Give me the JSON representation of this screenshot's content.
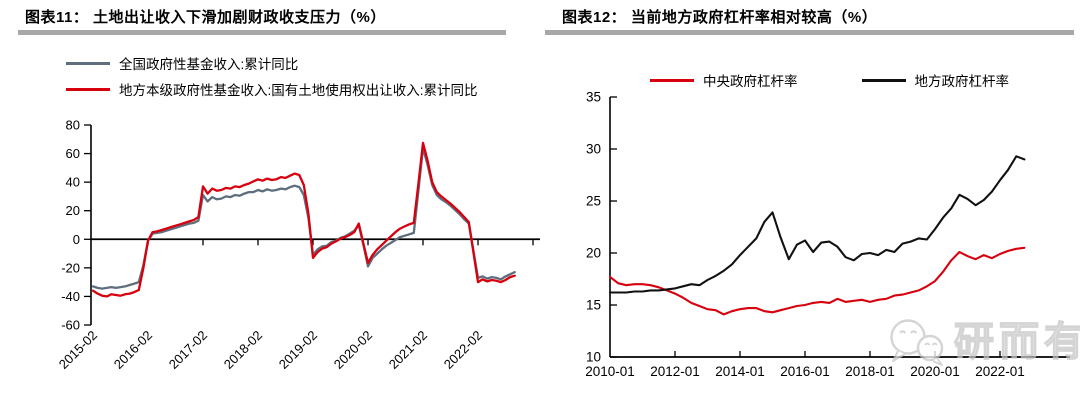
{
  "figure11": {
    "title": "图表11： 土地出让收入下滑加剧财政收支压力（%）",
    "chart_data": {
      "type": "line",
      "title": "土地出让收入下滑加剧财政收支压力（%）",
      "frequency": "monthly",
      "x_start": "2015-02",
      "x_tick_labels": [
        "2015-02",
        "2016-02",
        "2017-02",
        "2018-02",
        "2019-02",
        "2020-02",
        "2021-02",
        "2022-02"
      ],
      "y_ticks": [
        80,
        60,
        40,
        20,
        0,
        -20,
        -40,
        -60
      ],
      "ylim": [
        -60,
        80
      ],
      "grid": false,
      "legend_position": "top-left",
      "series": [
        {
          "name": "全国政府性基金收入:累计同比",
          "color": "#5e6e7e",
          "values": [
            -33,
            -34,
            -34.5,
            -34,
            -33.5,
            -34,
            -33.5,
            -33,
            -32,
            -31,
            -30,
            -18,
            -1,
            4,
            4.5,
            5,
            6,
            7,
            8,
            9,
            10,
            11,
            11.5,
            13,
            31,
            26.5,
            29.5,
            28,
            28.5,
            30,
            29.5,
            31,
            30.5,
            32,
            33,
            33,
            34.5,
            33.5,
            35,
            34,
            34.5,
            35.5,
            35,
            36.5,
            37.5,
            36.5,
            31,
            15,
            -11,
            -7,
            -5,
            -4.5,
            -2,
            -1,
            1,
            2,
            4,
            6,
            10,
            -4,
            -19,
            -13,
            -10,
            -7,
            -4.5,
            -2.5,
            -0.5,
            1.5,
            2.5,
            3.5,
            4.5,
            34,
            64,
            52,
            38,
            31,
            28,
            26,
            23.5,
            20.5,
            17.5,
            14,
            11,
            -8,
            -27,
            -26,
            -27.5,
            -26.5,
            -27,
            -28,
            -26,
            -24.5,
            -23
          ]
        },
        {
          "name": "地方本级政府性基金收入:国有土地使用权出让收入:累计同比",
          "color": "#d7000f",
          "values": [
            -36,
            -38,
            -39.5,
            -40,
            -38.5,
            -39,
            -39.5,
            -38.5,
            -38,
            -37,
            -35.5,
            -20,
            -1,
            5,
            5.5,
            6.5,
            7.5,
            8.5,
            9.5,
            10.5,
            11.5,
            12.5,
            13.5,
            15.5,
            37,
            32,
            35.5,
            34,
            34.5,
            36,
            35.5,
            37,
            36.5,
            38,
            39,
            40.5,
            42,
            41,
            42.5,
            41.5,
            42,
            43.5,
            43,
            44.5,
            46,
            45,
            38,
            18,
            -13,
            -9,
            -6.5,
            -5.5,
            -3,
            -1.5,
            0.5,
            1.5,
            3,
            5,
            11,
            -3,
            -16.5,
            -11,
            -7,
            -4,
            -1,
            2,
            5,
            7.5,
            9,
            10.5,
            11.5,
            39,
            67.5,
            55,
            40,
            33,
            30,
            27.5,
            25,
            22,
            19,
            15.5,
            12,
            -9,
            -30,
            -28,
            -29.5,
            -28.5,
            -29,
            -30,
            -28.5,
            -26.5,
            -25.5
          ]
        }
      ]
    }
  },
  "figure12": {
    "title": "图表12： 当前地方政府杠杆率相对较高（%）",
    "chart_data": {
      "type": "line",
      "title": "当前地方政府杠杆率相对较高（%）",
      "frequency": "quarterly",
      "x_start": "2010-01",
      "x_tick_labels": [
        "2010-01",
        "2012-01",
        "2014-01",
        "2016-01",
        "2018-01",
        "2020-01",
        "2022-01"
      ],
      "y_ticks": [
        35,
        30,
        25,
        20,
        15,
        10
      ],
      "ylim": [
        10,
        35
      ],
      "grid": false,
      "legend_position": "top",
      "series": [
        {
          "name": "中央政府杠杆率",
          "color": "#d7000f",
          "values": [
            17.7,
            17.1,
            16.9,
            17.0,
            17.0,
            16.9,
            16.7,
            16.4,
            16.1,
            15.7,
            15.2,
            14.9,
            14.6,
            14.5,
            14.1,
            14.4,
            14.6,
            14.7,
            14.7,
            14.4,
            14.3,
            14.5,
            14.7,
            14.9,
            15.0,
            15.2,
            15.3,
            15.2,
            15.6,
            15.3,
            15.4,
            15.5,
            15.3,
            15.5,
            15.6,
            15.9,
            16.0,
            16.2,
            16.4,
            16.8,
            17.3,
            18.2,
            19.3,
            20.1,
            19.7,
            19.4,
            19.8,
            19.5,
            19.9,
            20.2,
            20.4,
            20.5
          ]
        },
        {
          "name": "地方政府杠杆率",
          "color": "#111111",
          "values": [
            16.2,
            16.2,
            16.2,
            16.3,
            16.3,
            16.4,
            16.4,
            16.5,
            16.6,
            16.8,
            17.0,
            16.9,
            17.4,
            17.8,
            18.3,
            18.9,
            19.8,
            20.6,
            21.4,
            23.0,
            23.9,
            21.5,
            19.4,
            20.8,
            21.2,
            20.1,
            21.0,
            21.1,
            20.6,
            19.6,
            19.3,
            19.9,
            20.0,
            19.8,
            20.3,
            20.1,
            20.9,
            21.1,
            21.4,
            21.3,
            22.3,
            23.4,
            24.3,
            25.6,
            25.2,
            24.6,
            25.1,
            25.9,
            27.0,
            28.0,
            29.3,
            29.0
          ]
        }
      ]
    }
  },
  "watermark": {
    "text": "研而有信",
    "icon": "wechat-icon",
    "color": "#c6c6c6"
  }
}
